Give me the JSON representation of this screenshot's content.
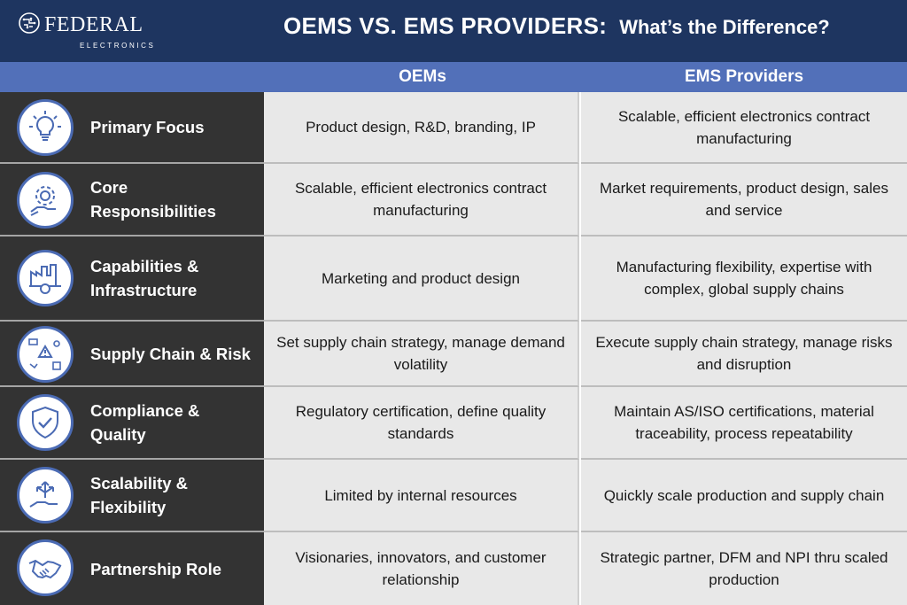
{
  "brand": {
    "name": "FEDERAL",
    "sub": "ELECTRONICS"
  },
  "title": {
    "main": "OEMS VS. EMS PROVIDERS:",
    "sub": "What’s the Difference?"
  },
  "columns": {
    "oem": "OEMs",
    "ems": "EMS Providers"
  },
  "colors": {
    "header_bg": "#1e3560",
    "column_header_bg": "#5270b9",
    "label_bg": "#333333",
    "cell_bg": "#e8e8e8",
    "icon_ring": "#4b6bb4"
  },
  "rows": [
    {
      "icon": "lightbulb-icon",
      "label": "Primary Focus",
      "oem": "Product design, R&D, branding, IP",
      "ems": "Scalable, efficient electronics contract manufacturing"
    },
    {
      "icon": "gear-hand-icon",
      "label": "Core Responsibilities",
      "oem": "Scalable, efficient electronics contract manufacturing",
      "ems": "Market requirements, product design, sales and service"
    },
    {
      "icon": "factory-gear-icon",
      "label": "Capabilities & Infrastructure",
      "oem": "Marketing and product design",
      "ems": "Manufacturing flexibility, expertise with complex, global supply chains"
    },
    {
      "icon": "supply-chain-warning-icon",
      "label": "Supply Chain & Risk",
      "oem": "Set supply chain strategy, manage demand volatility",
      "ems": "Execute supply chain strategy, manage risks and disruption"
    },
    {
      "icon": "shield-check-icon",
      "label": "Compliance & Quality",
      "oem": "Regulatory certification, define quality standards",
      "ems": "Maintain AS/ISO certifications, material traceability, process repeatability"
    },
    {
      "icon": "hand-arrows-icon",
      "label": "Scalability & Flexibility",
      "oem": "Limited by internal resources",
      "ems": "Quickly scale production and supply chain"
    },
    {
      "icon": "handshake-icon",
      "label": "Partnership Role",
      "oem": "Visionaries, innovators, and customer relationship",
      "ems": "Strategic partner, DFM and NPI thru scaled production"
    }
  ]
}
